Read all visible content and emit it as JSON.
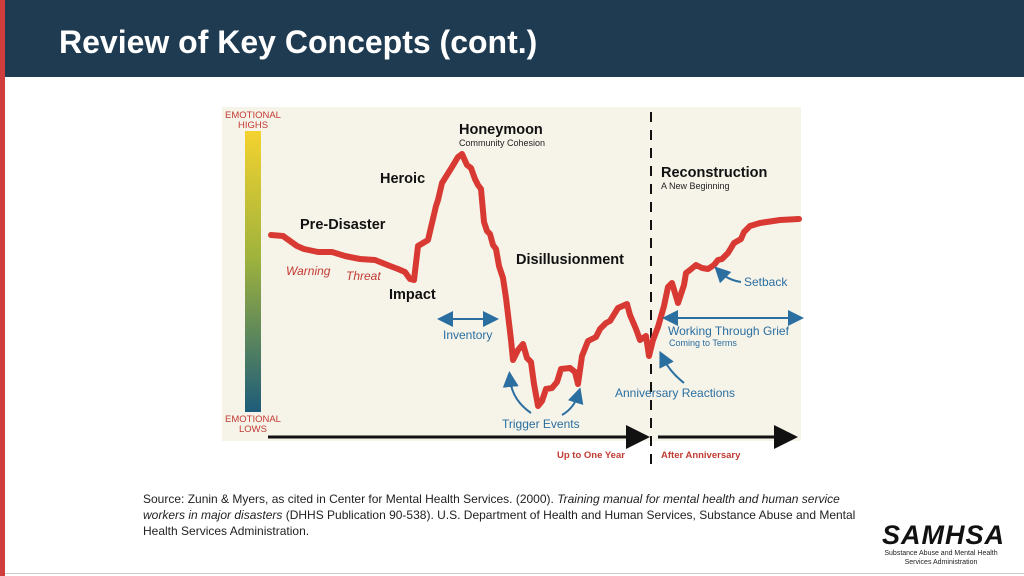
{
  "header": {
    "title": "Review of Key Concepts (cont.)"
  },
  "diagram": {
    "axis": {
      "highs": [
        "EMOTIONAL",
        "HIGHS"
      ],
      "lows": [
        "EMOTIONAL",
        "LOWS"
      ]
    },
    "phases": {
      "honeymoon": "Honeymoon",
      "honeymoon_sub": "Community Cohesion",
      "heroic": "Heroic",
      "pre_disaster": "Pre-Disaster",
      "impact": "Impact",
      "disillusionment": "Disillusionment",
      "reconstruction": "Reconstruction",
      "reconstruction_sub": "A New Beginning"
    },
    "annotations": {
      "warning": "Warning",
      "threat": "Threat",
      "inventory": "Inventory",
      "trigger_events": "Trigger Events",
      "anniversary_reactions": "Anniversary Reactions",
      "setback": "Setback",
      "working_through_grief": "Working Through Grief",
      "coming_to_terms": "Coming to Terms"
    },
    "timeline": {
      "up_to_one_year": "Up to One Year",
      "after_anniversary": "After Anniversary"
    },
    "colors": {
      "curve": "#d83a33",
      "annotation_blue": "#2a6fa0",
      "warning_red": "#c23b33",
      "gradient_top": "#f4d22f",
      "gradient_bottom": "#1d5c7a"
    }
  },
  "source": {
    "prefix": "Source: Zunin & Myers, as cited in Center for Mental Health Services. (2000). ",
    "title": "Training manual for mental health and human service workers in major disasters",
    "suffix": " (DHHS Publication 90-538). U.S. Department of Health and Human Services, Substance Abuse and Mental Health Services Administration."
  },
  "logo": {
    "word": "SAMHSA",
    "sub_line1": "Substance Abuse and Mental Health",
    "sub_line2": "Services Administration"
  }
}
